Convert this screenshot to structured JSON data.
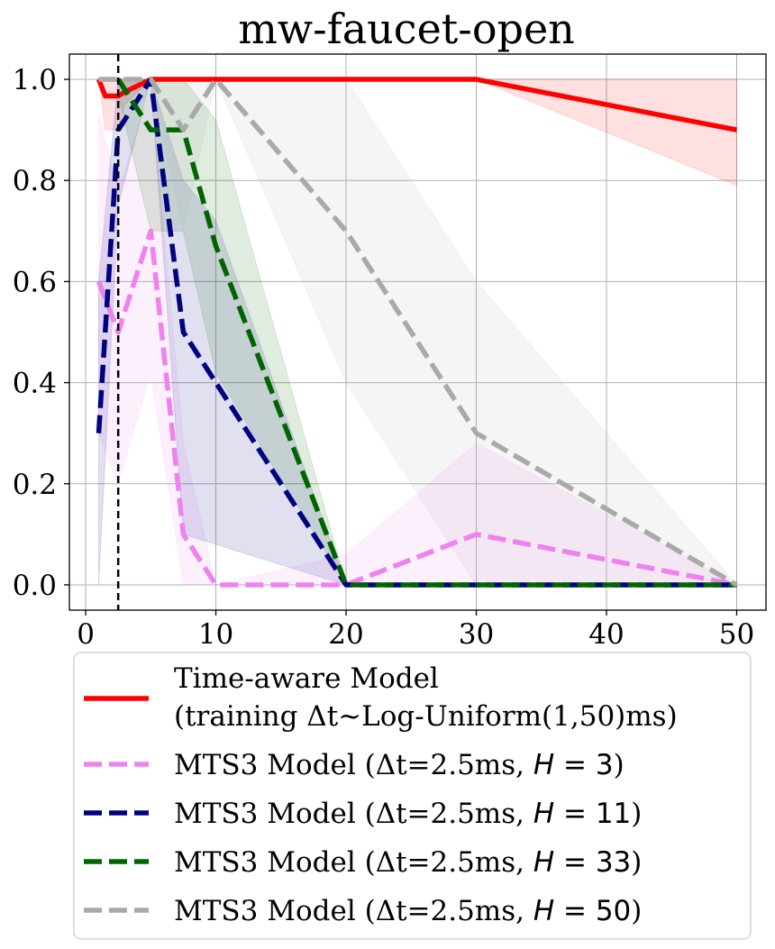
{
  "chart_data": {
    "type": "line",
    "title": "mw-faucet-open",
    "xlabel": "",
    "ylabel": "",
    "xlim": [
      -1.25,
      52.25
    ],
    "ylim": [
      -0.05,
      1.05
    ],
    "xticks": [
      0,
      10,
      20,
      30,
      40,
      50
    ],
    "xtick_labels": [
      "0",
      "10",
      "20",
      "30",
      "40",
      "50"
    ],
    "yticks": [
      0.0,
      0.2,
      0.4,
      0.6,
      0.8,
      1.0
    ],
    "ytick_labels": [
      "0.0",
      "0.2",
      "0.4",
      "0.6",
      "0.8",
      "1.0"
    ],
    "grid": true,
    "legend_position": "below",
    "vline": {
      "x": 2.5,
      "style": "dashed",
      "color": "#000000"
    },
    "series": [
      {
        "name_lines": [
          "Time-aware Model",
          "(training Δt~Log-Uniform(1,50)ms)"
        ],
        "color": "#ff0000",
        "style": "solid",
        "x": [
          1,
          1.5,
          2.5,
          3,
          5,
          7.5,
          10,
          20,
          30,
          50
        ],
        "y": [
          1.0,
          0.967,
          0.967,
          0.975,
          1.0,
          1.0,
          1.0,
          1.0,
          1.0,
          0.9
        ],
        "lower": [
          1.0,
          0.9,
          0.9,
          0.95,
          1.0,
          1.0,
          1.0,
          1.0,
          1.0,
          0.79
        ],
        "upper": [
          1.0,
          1.0,
          1.0,
          1.0,
          1.0,
          1.0,
          1.0,
          1.0,
          1.0,
          1.0
        ]
      },
      {
        "name": "MTS3 Model (Δt=2.5ms, ",
        "h_label": "H",
        "h_value": "= 3",
        "color": "#ee82ee",
        "style": "dashed",
        "x": [
          1,
          2.5,
          5,
          7.5,
          10,
          20,
          30,
          50
        ],
        "y": [
          0.6,
          0.5,
          0.7,
          0.1,
          0.0,
          0.0,
          0.1,
          0.0
        ],
        "lower": [
          0.3,
          0.2,
          0.42,
          0.0,
          0.0,
          0.0,
          0.0,
          0.0
        ],
        "upper": [
          0.93,
          0.78,
          0.98,
          0.28,
          0.0,
          0.06,
          0.28,
          0.0
        ]
      },
      {
        "name": "MTS3 Model (Δt=2.5ms, ",
        "h_label": "H",
        "h_value": "= 11",
        "color": "#000080",
        "style": "dashed",
        "x": [
          1,
          2.5,
          5,
          7.5,
          10,
          20,
          30,
          50
        ],
        "y": [
          0.3,
          0.9,
          1.0,
          0.5,
          0.4,
          0.0,
          0.0,
          0.0
        ],
        "lower": [
          0.0,
          0.75,
          1.0,
          0.1,
          0.08,
          0.0,
          0.0,
          0.0
        ],
        "upper": [
          0.6,
          1.0,
          1.0,
          0.8,
          0.72,
          0.0,
          0.0,
          0.0
        ]
      },
      {
        "name": "MTS3 Model (Δt=2.5ms, ",
        "h_label": "H",
        "h_value": "= 33",
        "color": "#006400",
        "style": "dashed",
        "x": [
          2.5,
          5,
          7.5,
          10,
          20,
          30,
          50
        ],
        "y": [
          1.0,
          0.9,
          0.9,
          0.67,
          0.0,
          0.0,
          0.0
        ],
        "lower": [
          0.97,
          0.7,
          0.7,
          0.42,
          0.0,
          0.0,
          0.0
        ],
        "upper": [
          1.0,
          1.0,
          1.0,
          0.92,
          0.0,
          0.0,
          0.0
        ]
      },
      {
        "name": "MTS3 Model (Δt=2.5ms, ",
        "h_label": "H",
        "h_value": "= 50",
        "color": "#a9a9a9",
        "style": "dashed",
        "x": [
          1,
          2.5,
          5,
          7.5,
          10,
          20,
          30,
          50
        ],
        "y": [
          1.0,
          1.0,
          1.0,
          0.9,
          1.0,
          0.7,
          0.3,
          0.0
        ],
        "lower": [
          1.0,
          1.0,
          1.0,
          0.7,
          1.0,
          0.4,
          0.0,
          0.0
        ],
        "upper": [
          1.0,
          1.0,
          1.0,
          1.0,
          1.0,
          1.0,
          0.6,
          0.0
        ]
      }
    ]
  }
}
